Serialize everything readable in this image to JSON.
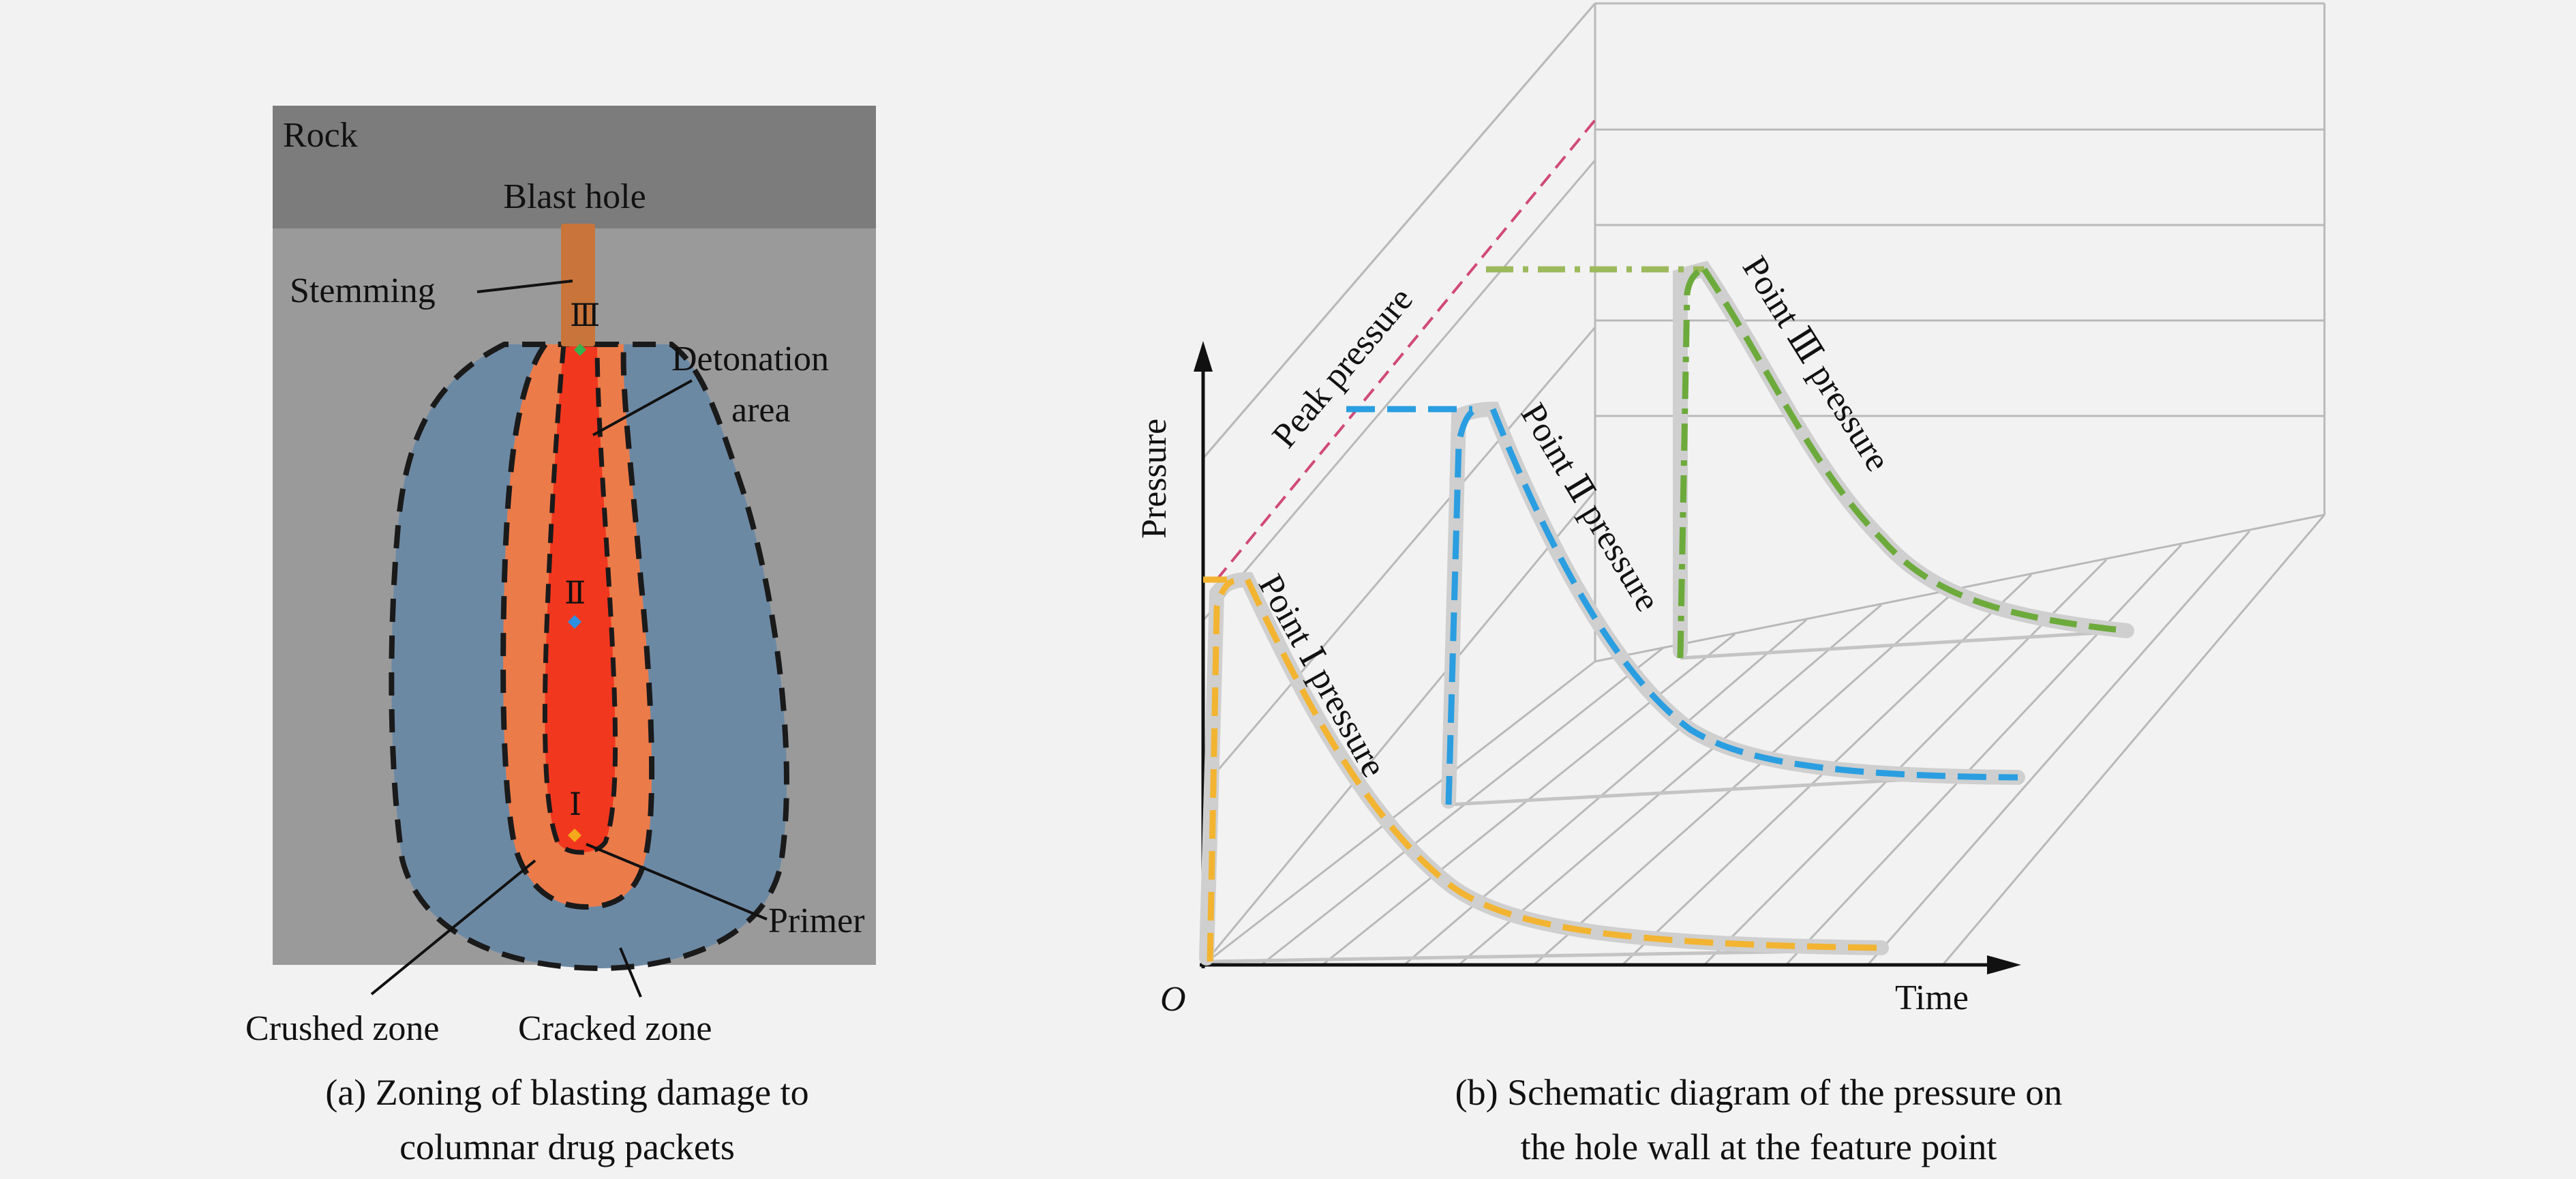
{
  "panel_a": {
    "rock_label": "Rock",
    "blast_hole_label": "Blast hole",
    "stemming_label": "Stemming",
    "detonation_label_line1": "Detonation",
    "detonation_label_line2": "area",
    "primer_label": "Primer",
    "crushed_zone_label": "Crushed zone",
    "cracked_zone_label": "Cracked zone",
    "point_labels": [
      "Ⅲ",
      "Ⅱ",
      "Ⅰ"
    ],
    "caption_line1": "(a) Zoning of blasting damage to",
    "caption_line2": "columnar drug packets",
    "colors": {
      "rock_top": "#7c7c7c",
      "rock_body": "#9a9a9a",
      "stemming": "#c8743a",
      "cracked_zone": "#6c89a4",
      "crushed_zone": "#ec7b4a",
      "detonation_area": "#f2371f",
      "point_III_marker": "#37b24d",
      "point_II_marker": "#2f8fe0",
      "point_I_marker": "#f4a81a"
    }
  },
  "panel_b": {
    "y_axis_label": "Pressure",
    "x_axis_label": "Time",
    "origin_label": "O",
    "peak_label": "Peak pressure",
    "curve_labels": [
      "Point Ⅰ pressure",
      "Point Ⅱ pressure",
      "Point Ⅲ pressure"
    ],
    "caption_line1": "(b) Schematic diagram of the pressure on",
    "caption_line2": "the hole wall at the feature point",
    "colors": {
      "point_I": "#f2b431",
      "point_II": "#2a9ee0",
      "point_III": "#6daa3c",
      "peak_line": "#d04a78",
      "grid": "#b9b9b9"
    }
  }
}
